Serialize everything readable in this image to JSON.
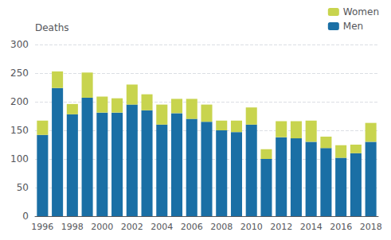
{
  "chart_data": {
    "type": "bar",
    "stacked": true,
    "ylabel": "Deaths",
    "categories": [
      "1996",
      null,
      "1998",
      null,
      "2000",
      null,
      "2002",
      null,
      "2004",
      null,
      "2006",
      null,
      "2008",
      null,
      "2010",
      null,
      "2012",
      null,
      "2014",
      null,
      "2016",
      null,
      "2018"
    ],
    "series": [
      {
        "name": "Men",
        "color": "#1a6fa5",
        "values": [
          142,
          224,
          178,
          207,
          181,
          181,
          195,
          185,
          160,
          180,
          170,
          165,
          150,
          147,
          160,
          100,
          138,
          136,
          130,
          119,
          102,
          110,
          130
        ]
      },
      {
        "name": "Women",
        "color": "#c8d44e",
        "values": [
          25,
          29,
          18,
          44,
          28,
          25,
          35,
          28,
          35,
          25,
          35,
          30,
          17,
          20,
          30,
          17,
          28,
          30,
          37,
          20,
          22,
          15,
          33
        ]
      }
    ],
    "ylim": [
      0,
      300
    ],
    "yticks": [
      0,
      50,
      100,
      150,
      200,
      250,
      300
    ],
    "grid": true,
    "legend": "upper right"
  }
}
